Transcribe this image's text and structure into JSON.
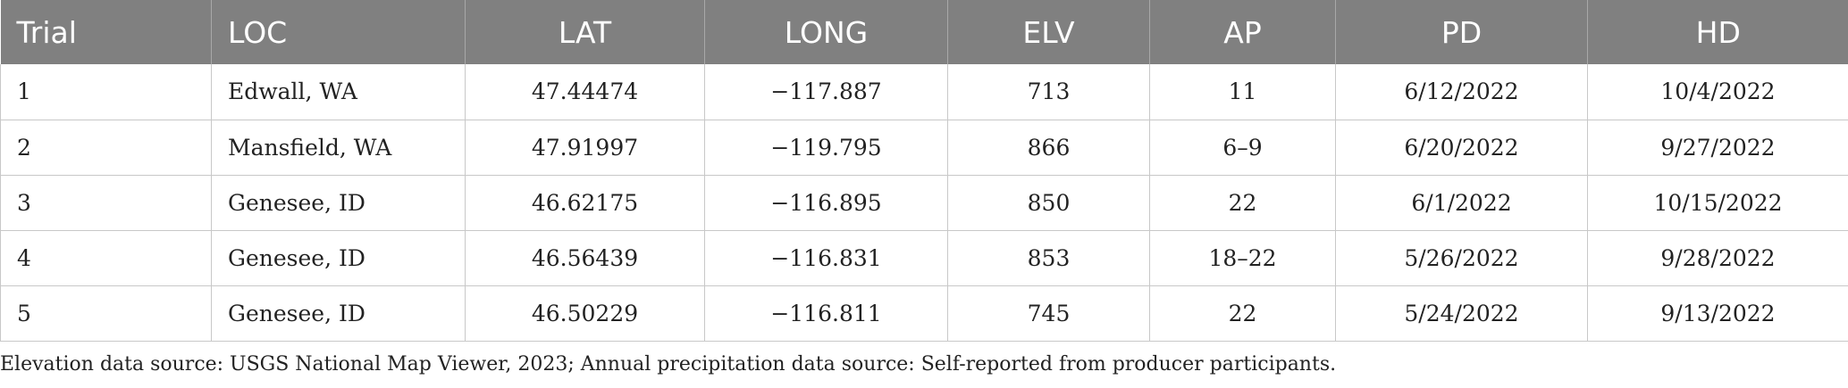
{
  "table": {
    "headers": [
      "Trial",
      "LOC",
      "LAT",
      "LONG",
      "ELV",
      "AP",
      "PD",
      "HD"
    ],
    "rows": [
      [
        "1",
        "Edwall, WA",
        "47.44474",
        "−117.887",
        "713",
        "11",
        "6/12/2022",
        "10/4/2022"
      ],
      [
        "2",
        "Mansfield, WA",
        "47.91997",
        "−119.795",
        "866",
        "6–9",
        "6/20/2022",
        "9/27/2022"
      ],
      [
        "3",
        "Genesee, ID",
        "46.62175",
        "−116.895",
        "850",
        "22",
        "6/1/2022",
        "10/15/2022"
      ],
      [
        "4",
        "Genesee, ID",
        "46.56439",
        "−116.831",
        "853",
        "18–22",
        "5/26/2022",
        "9/28/2022"
      ],
      [
        "5",
        "Genesee, ID",
        "46.50229",
        "−116.811",
        "745",
        "22",
        "5/24/2022",
        "9/13/2022"
      ]
    ]
  },
  "footnote": "Elevation data source: USGS National Map Viewer, 2023; Annual precipitation data source: Self-reported from producer participants.",
  "colors": {
    "header_bg": "#808080",
    "header_text": "#ffffff",
    "grid": "#c8c8c8",
    "text": "#222222"
  }
}
